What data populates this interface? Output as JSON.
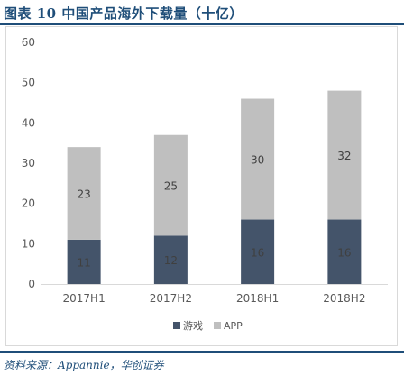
{
  "header": {
    "title": "图表 10   中国产品海外下载量（十亿）"
  },
  "footer": {
    "source": "资料来源：Appannie，华创证券"
  },
  "colors": {
    "games": "#44546a",
    "app": "#bfbfbf",
    "axis_text": "#595959",
    "label_dark": "#404040",
    "label_light": "#595959"
  },
  "chart_data": {
    "type": "bar",
    "stacked": true,
    "title": "",
    "xlabel": "",
    "ylabel": "",
    "categories": [
      "2017H1",
      "2017H2",
      "2018H1",
      "2018H2"
    ],
    "ylim": [
      0,
      60
    ],
    "yticks": [
      0,
      10,
      20,
      30,
      40,
      50,
      60
    ],
    "grid": false,
    "legend": "bottom",
    "series": [
      {
        "name": "游戏",
        "values": [
          11,
          12,
          16,
          16
        ],
        "color": "#44546a"
      },
      {
        "name": "APP",
        "values": [
          23,
          25,
          30,
          32
        ],
        "color": "#bfbfbf"
      }
    ]
  }
}
